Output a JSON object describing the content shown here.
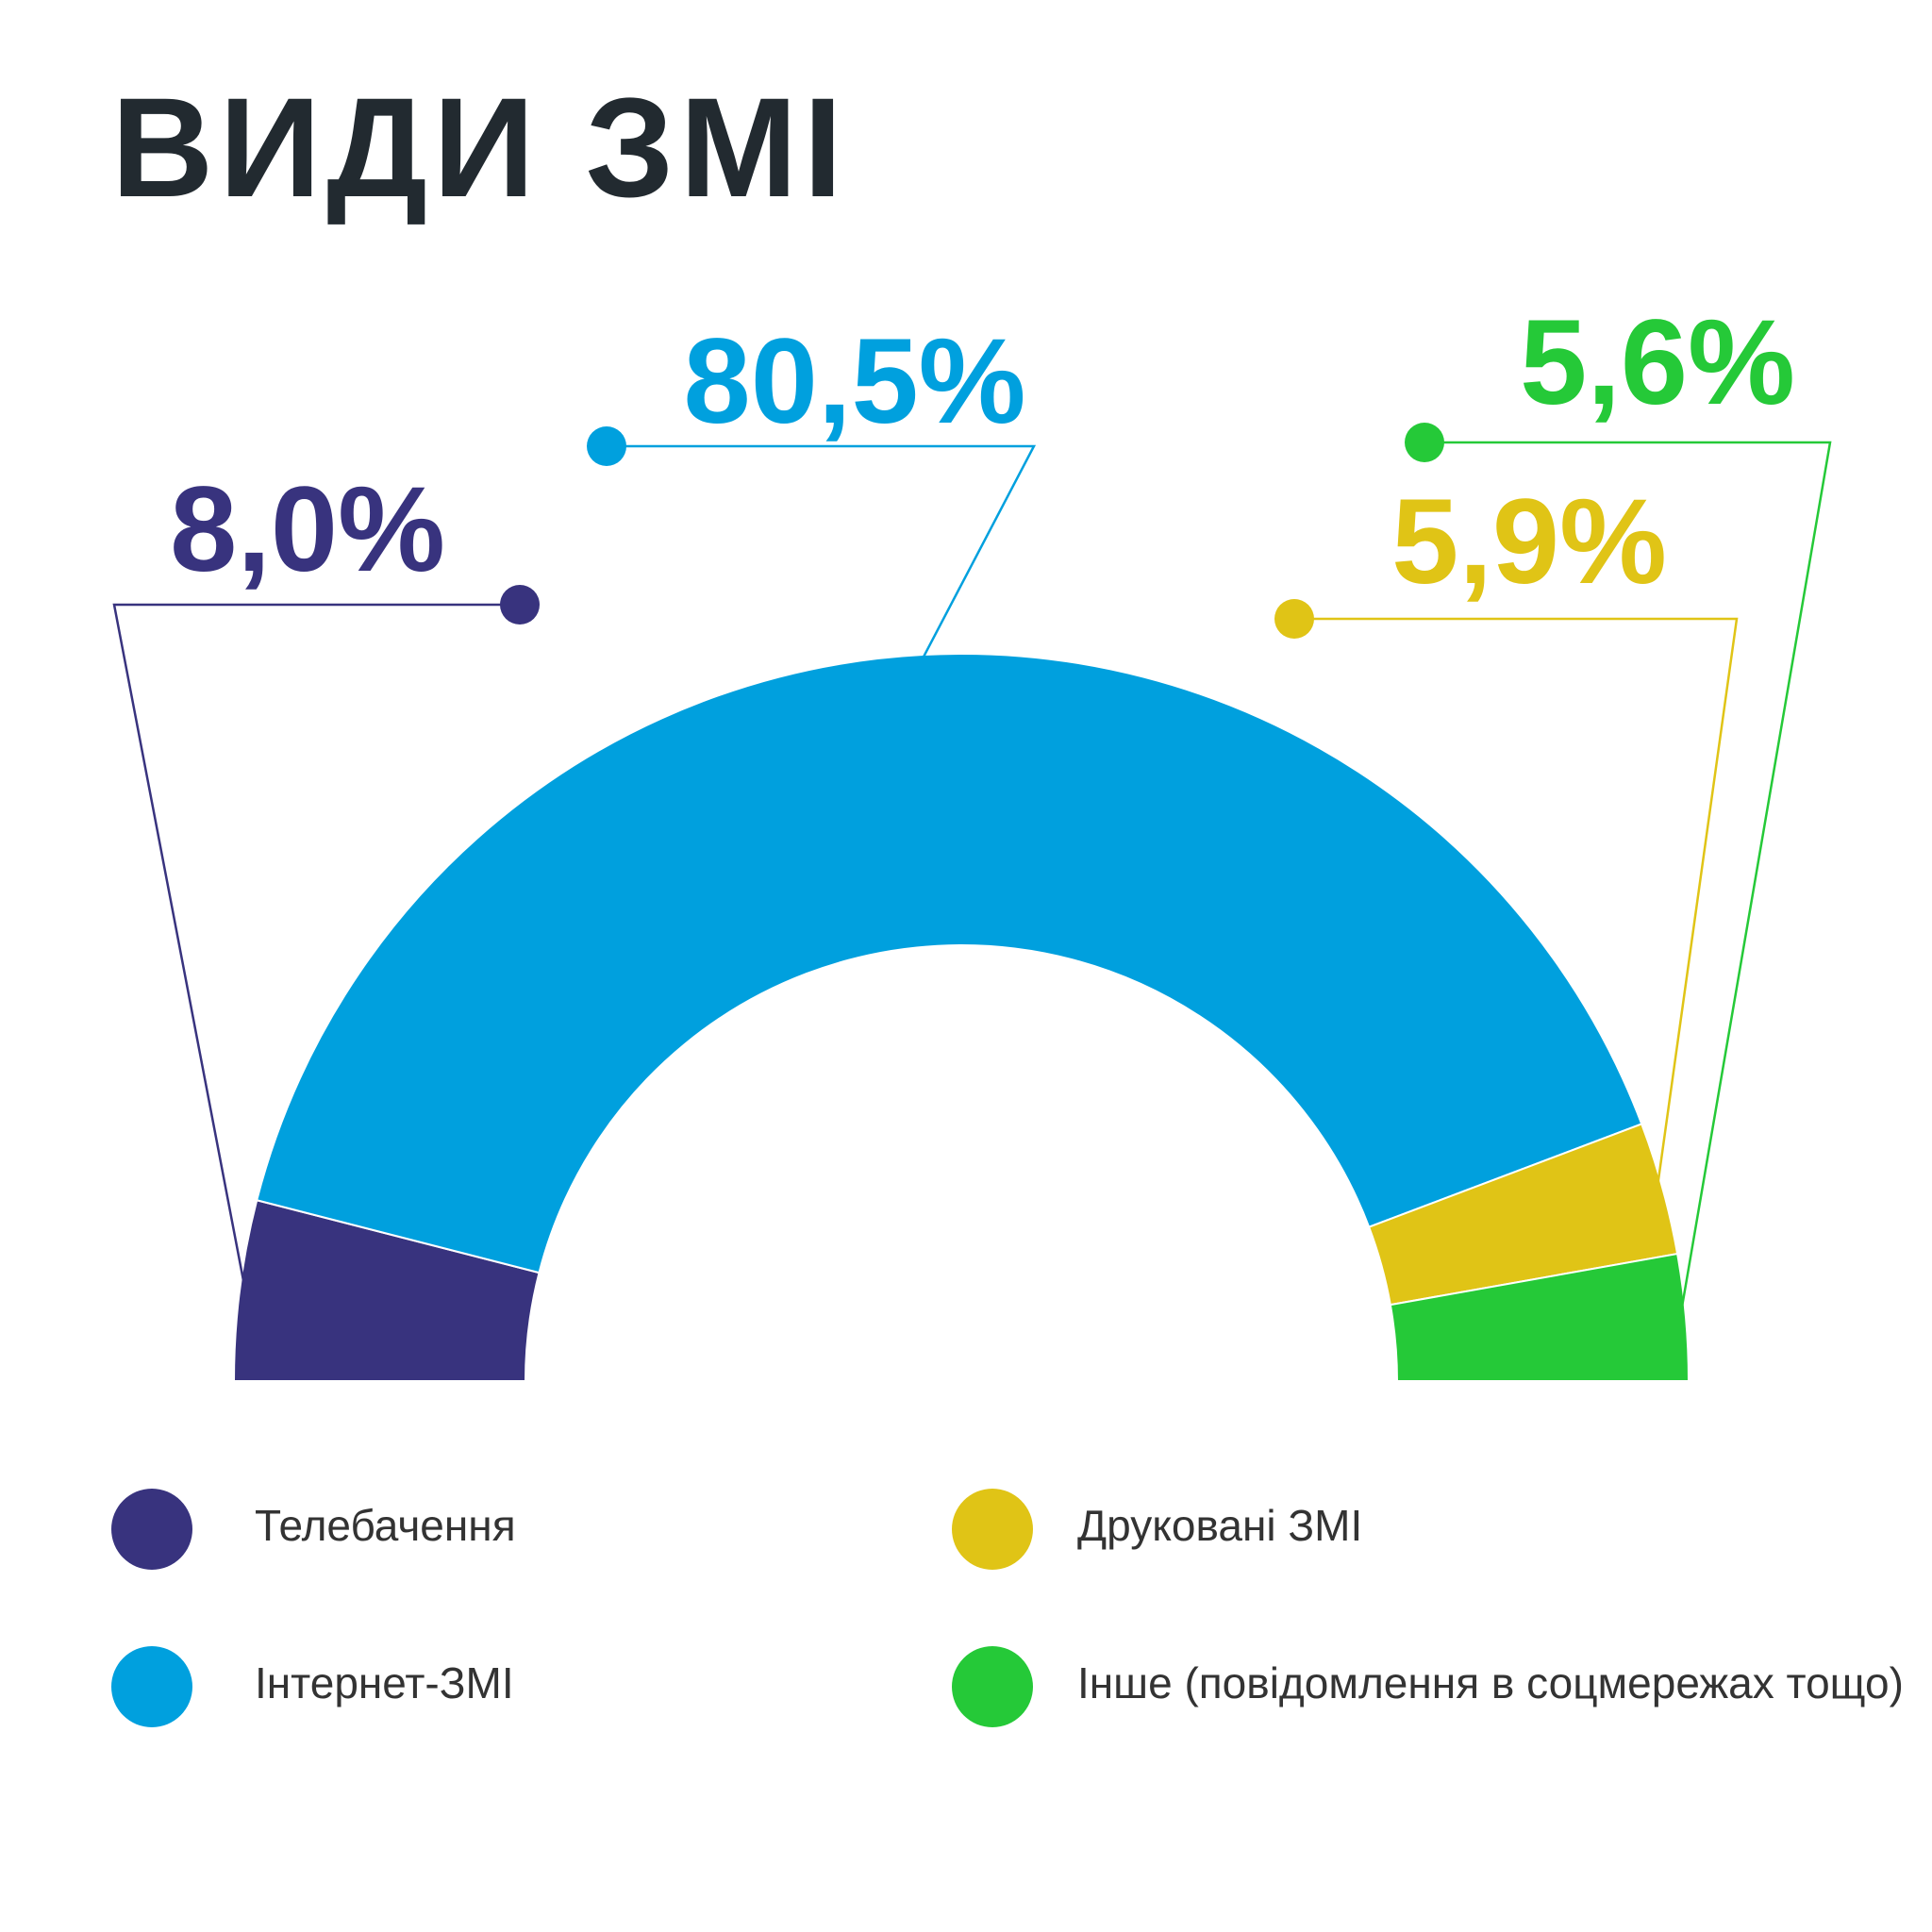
{
  "chart_data": {
    "type": "half-donut",
    "title": "ВИДИ ЗМІ",
    "categories": [
      "Телебачення",
      "Інтернет-ЗМІ",
      "Друковані ЗМІ",
      "Інше (повідомлення в соцмережах тощо)"
    ],
    "values": [
      8.0,
      80.5,
      5.9,
      5.6
    ],
    "value_labels": [
      "8,0%",
      "80,5%",
      "5,9%",
      "5,6%"
    ],
    "colors": [
      "#38337e",
      "#00a0de",
      "#e0c416",
      "#25c938"
    ]
  }
}
